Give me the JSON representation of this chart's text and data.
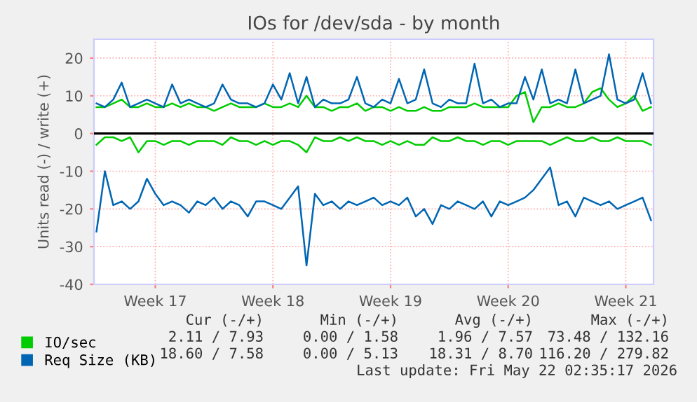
{
  "chart_data": {
    "type": "line",
    "title": "IOs for /dev/sda - by month",
    "ylabel": "Units read (-) / write (+)",
    "categories": [
      null,
      null,
      null,
      null,
      null,
      null,
      null,
      "Week 17",
      null,
      null,
      null,
      null,
      null,
      null,
      null,
      null,
      null,
      null,
      null,
      null,
      null,
      "Week 18",
      null,
      null,
      null,
      null,
      null,
      null,
      null,
      null,
      null,
      null,
      null,
      null,
      null,
      "Week 19",
      null,
      null,
      null,
      null,
      null,
      null,
      null,
      null,
      null,
      null,
      null,
      null,
      null,
      "Week 20",
      null,
      null,
      null,
      null,
      null,
      null,
      null,
      null,
      null,
      null,
      null,
      null,
      null,
      "Week 21",
      null,
      null,
      null
    ],
    "series": [
      {
        "name": "IO/sec",
        "color": "#00cc00",
        "values": [
          7,
          7,
          8,
          9,
          7,
          7,
          8,
          7,
          7,
          8,
          7,
          8,
          7,
          7,
          6,
          7,
          8,
          7,
          7,
          7,
          8,
          7,
          7,
          8,
          7,
          10,
          7,
          7,
          6,
          7,
          7,
          8,
          6,
          7,
          7,
          6,
          7,
          6,
          6,
          7,
          6,
          6,
          7,
          7,
          7,
          8,
          7,
          7,
          7,
          7,
          10,
          11,
          3,
          7,
          7,
          8,
          7,
          7,
          8,
          11,
          12,
          9,
          7,
          8,
          10,
          6,
          7
        ]
      },
      {
        "color": "#00cc00",
        "values": [
          -3,
          -1,
          -1,
          -2,
          -1,
          -5,
          -2,
          -2,
          -3,
          -2,
          -2,
          -3,
          -2,
          -2,
          -2,
          -3,
          -1,
          -2,
          -2,
          -3,
          -2,
          -3,
          -2,
          -2,
          -3,
          -5,
          -1,
          -2,
          -2,
          -1,
          -2,
          -1,
          -2,
          -2,
          -3,
          -2,
          -3,
          -2,
          -3,
          -3,
          -1,
          -2,
          -2,
          -1,
          -2,
          -2,
          -3,
          -2,
          -2,
          -3,
          -2,
          -2,
          -2,
          -2,
          -3,
          -2,
          -1,
          -2,
          -2,
          -1,
          -2,
          -2,
          -1,
          -2,
          -2,
          -2,
          -3
        ]
      },
      {
        "name": "Req Size (KB)",
        "color": "#0066b3",
        "values": [
          8,
          7,
          9,
          13.5,
          7,
          8,
          9,
          8,
          7,
          13,
          8,
          9,
          8,
          7,
          8,
          13,
          9,
          8,
          8,
          7,
          8,
          13,
          9,
          16,
          8,
          15,
          7,
          9,
          8,
          8,
          9,
          15,
          8,
          7,
          9,
          8,
          14.5,
          8,
          9,
          17,
          8,
          7,
          9,
          8,
          8,
          18.5,
          8,
          9,
          7,
          8,
          8,
          15,
          9,
          17,
          8,
          9,
          8,
          17,
          8,
          9,
          10,
          21,
          9,
          8,
          9,
          16,
          8
        ]
      },
      {
        "color": "#0066b3",
        "values": [
          -26,
          -10,
          -19,
          -18,
          -20,
          -18,
          -12,
          -16,
          -19,
          -18,
          -19,
          -21,
          -18,
          -19,
          -17,
          -20,
          -18,
          -19,
          -22,
          -18,
          -18,
          -19,
          -20,
          -17,
          -14,
          -35,
          -16,
          -19,
          -18,
          -20,
          -18,
          -19,
          -18,
          -17,
          -19,
          -18,
          -19,
          -17,
          -22,
          -20,
          -24,
          -19,
          -20,
          -18,
          -19,
          -20,
          -18,
          -22,
          -18,
          -19,
          -18,
          -17,
          -15,
          -12,
          -9,
          -19,
          -18,
          -22,
          -17,
          -18,
          -19,
          -18,
          -20,
          -19,
          -18,
          -17,
          -23
        ]
      }
    ],
    "ylim": [
      -40,
      25
    ],
    "yticks": [
      -40,
      -30,
      -20,
      -10,
      0,
      10,
      20
    ],
    "ref_lines": [
      {
        "axis": "y",
        "value": 0,
        "color": "#000000"
      }
    ],
    "grid": true,
    "legend": "bottom",
    "marker": "none",
    "line_style": "solid",
    "annotations": [
      "Cur (-/+)",
      "Min (-/+)",
      "Avg (-/+)",
      "Max (-/+)",
      "2.11 / 7.93",
      "0.00 / 1.58",
      "1.96 / 7.57",
      "73.48 / 132.16",
      "18.60 / 7.58",
      "0.00 / 5.13",
      "18.31 / 8.70",
      "116.20 / 279.82",
      "Last update: Fri May 22 02:35:17 2026"
    ]
  }
}
